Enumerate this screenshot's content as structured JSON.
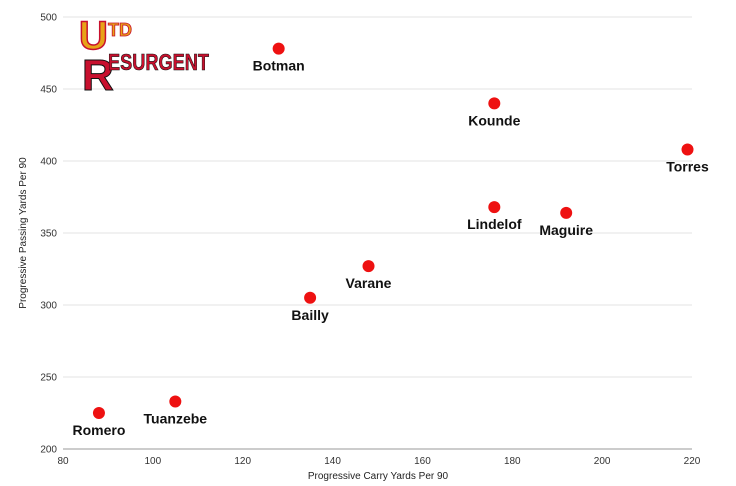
{
  "logo": {
    "letters_top": "TD",
    "letters_main": "ESURGENT",
    "glyph_u": "U",
    "glyph_r": "R",
    "accent_color": "#e8a317",
    "brand_color": "#c8102e"
  },
  "chart_data": {
    "type": "scatter",
    "title": "",
    "xlabel": "Progressive Carry Yards Per 90",
    "ylabel": "Progressive Passing Yards Per 90",
    "xlim": [
      80,
      220
    ],
    "ylim": [
      200,
      500
    ],
    "xticks": [
      80,
      100,
      120,
      140,
      160,
      180,
      200,
      220
    ],
    "yticks": [
      200,
      250,
      300,
      350,
      400,
      450,
      500
    ],
    "grid": "horizontal",
    "marker_color": "#ee1111",
    "points": [
      {
        "name": "Botman",
        "x": 128,
        "y": 478
      },
      {
        "name": "Kounde",
        "x": 176,
        "y": 440
      },
      {
        "name": "Torres",
        "x": 219,
        "y": 408
      },
      {
        "name": "Lindelof",
        "x": 176,
        "y": 368
      },
      {
        "name": "Maguire",
        "x": 192,
        "y": 364
      },
      {
        "name": "Varane",
        "x": 148,
        "y": 327
      },
      {
        "name": "Bailly",
        "x": 135,
        "y": 305
      },
      {
        "name": "Tuanzebe",
        "x": 105,
        "y": 233
      },
      {
        "name": "Romero",
        "x": 88,
        "y": 225
      }
    ]
  }
}
